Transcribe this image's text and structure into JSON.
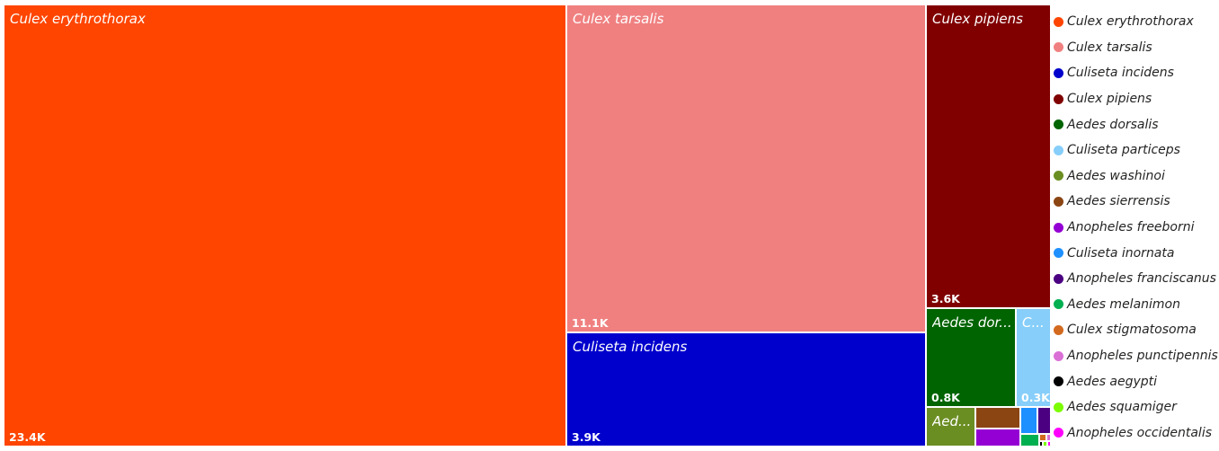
{
  "chart_data": {
    "type": "treemap",
    "unit_suffix": "K",
    "series": [
      {
        "name": "Culex erythrothorax",
        "value": 23.4,
        "label": "23.4K",
        "color": "#FF4500"
      },
      {
        "name": "Culex tarsalis",
        "value": 11.1,
        "label": "11.1K",
        "color": "#F08080"
      },
      {
        "name": "Culiseta incidens",
        "value": 3.9,
        "label": "3.9K",
        "color": "#0000CD"
      },
      {
        "name": "Culex pipiens",
        "value": 3.6,
        "label": "3.6K",
        "color": "#800000"
      },
      {
        "name": "Aedes dorsalis",
        "value": 0.8,
        "label": "0.8K",
        "tile_name": "Aedes dor...",
        "color": "#006400"
      },
      {
        "name": "Culiseta particeps",
        "value": 0.3,
        "label": "0.3K",
        "tile_name": "C...",
        "color": "#87CEFA"
      },
      {
        "name": "Aedes washinoi",
        "value": 0.2,
        "tile_name": "Aed...",
        "color": "#6B8E23"
      },
      {
        "name": "Aedes sierrensis",
        "value": 0.07,
        "color": "#8B4513"
      },
      {
        "name": "Anopheles freeborni",
        "value": 0.05,
        "color": "#9400D3"
      },
      {
        "name": "Culiseta inornata",
        "value": 0.03,
        "color": "#1E90FF"
      },
      {
        "name": "Anopheles franciscanus",
        "value": 0.03,
        "color": "#4B0082"
      },
      {
        "name": "Aedes melanimon",
        "value": 0.02,
        "color": "#00B050"
      },
      {
        "name": "Culex stigmatosoma",
        "value": 0.01,
        "color": "#D2691E"
      },
      {
        "name": "Anopheles punctipennis",
        "value": 0.004,
        "color": "#DA70D6"
      },
      {
        "name": "Aedes aegypti",
        "value": 0.002,
        "color": "#000000"
      },
      {
        "name": "Aedes squamiger",
        "value": 0.002,
        "color": "#7CFC00"
      },
      {
        "name": "Anopheles occidentalis",
        "value": 0.001,
        "color": "#FF00FF"
      }
    ],
    "legend_position": "right"
  }
}
